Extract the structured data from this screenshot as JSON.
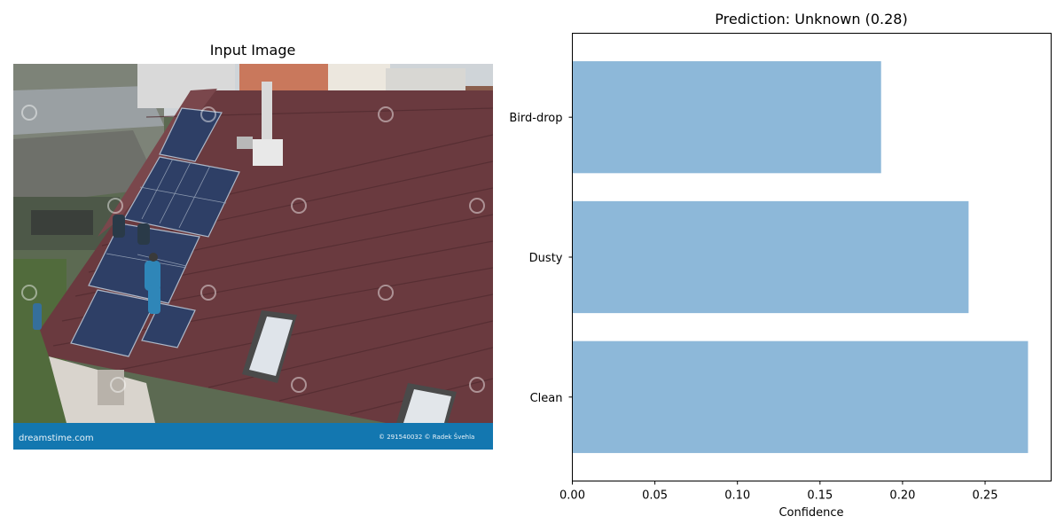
{
  "left_panel": {
    "title": "Input Image",
    "watermark_left": "dreamstime.com",
    "watermark_right": "© 291540032 © Radek Švehla"
  },
  "chart_data": {
    "type": "bar",
    "orientation": "horizontal",
    "title": "Prediction: Unknown (0.28)",
    "categories": [
      "Clean",
      "Dusty",
      "Bird-drop"
    ],
    "values": [
      0.276,
      0.24,
      0.187
    ],
    "xlabel": "Confidence",
    "ylabel": "",
    "xlim": [
      0,
      0.29
    ],
    "xticks": [
      0.0,
      0.05,
      0.1,
      0.15,
      0.2,
      0.25
    ],
    "xtick_labels": [
      "0.00",
      "0.05",
      "0.10",
      "0.15",
      "0.20",
      "0.25"
    ],
    "bar_color": "#8db8d9",
    "grid": false,
    "legend": "none"
  }
}
